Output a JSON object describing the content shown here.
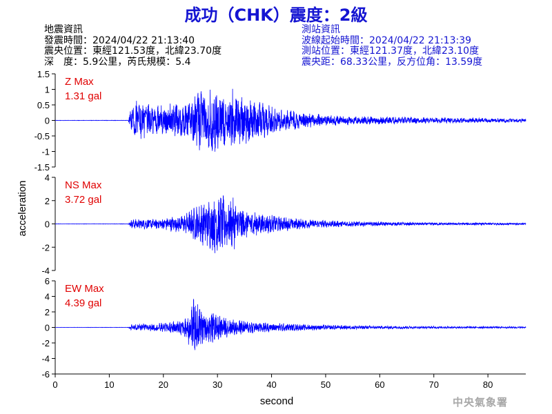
{
  "header": {
    "title": "成功（CHK）震度：2級",
    "quake_info": {
      "heading": "地震資訊",
      "time": "發震時間：2024/04/22 21:13:40",
      "epicenter": "震央位置：東經121.53度，北緯23.70度",
      "depth_magnitude": "深　度：5.9公里，芮氏規模：5.4"
    },
    "station_info": {
      "heading": "測站資訊",
      "wave_start": "波線起始時間：2024/04/22 21:13:39",
      "location": "測站位置：東經121.37度，北緯23.10度",
      "distance_azimuth": "震央距：68.33公里，反方位角：13.59度"
    }
  },
  "footer": {
    "credit": "中央氣象署"
  },
  "colors": {
    "title": "#1414d2",
    "trace": "#0000ff",
    "max_label": "#e00000",
    "axis": "#000000",
    "credit": "#a8a8a8"
  },
  "chart_data": {
    "type": "line",
    "xlabel": "second",
    "ylabel": "acceleration",
    "xlim": [
      0,
      87
    ],
    "xticks": [
      0,
      10,
      20,
      30,
      40,
      50,
      60,
      70,
      80
    ],
    "xtick_labels": [
      "0",
      "10",
      "20",
      "30",
      "40",
      "50",
      "60",
      "70",
      "80"
    ],
    "grid": false,
    "panels": [
      {
        "component": "Z",
        "max_label": "Z Max",
        "max_value_label": "1.31 gal",
        "peak": 1.31,
        "ylim": [
          -1.5,
          1.5
        ],
        "yticks": [
          -1.5,
          -1,
          -0.5,
          0,
          0.5,
          1,
          1.5
        ],
        "ytick_labels": [
          "-1.5",
          "-1",
          "-0.5",
          "0",
          "0.5",
          "1",
          "1.5"
        ],
        "envelope": [
          [
            0,
            0.004
          ],
          [
            13.5,
            0.006
          ],
          [
            14,
            0.35
          ],
          [
            15,
            0.65
          ],
          [
            16,
            0.55
          ],
          [
            18,
            0.5
          ],
          [
            20,
            0.45
          ],
          [
            22,
            0.55
          ],
          [
            24,
            0.5
          ],
          [
            26,
            0.75
          ],
          [
            27,
            1.0
          ],
          [
            28,
            0.8
          ],
          [
            29,
            1.1
          ],
          [
            30,
            0.9
          ],
          [
            31,
            0.85
          ],
          [
            32,
            0.7
          ],
          [
            33,
            1.15
          ],
          [
            34,
            0.9
          ],
          [
            35,
            0.75
          ],
          [
            37,
            0.7
          ],
          [
            38,
            0.55
          ],
          [
            40,
            0.45
          ],
          [
            42,
            0.35
          ],
          [
            44,
            0.3
          ],
          [
            46,
            0.25
          ],
          [
            48,
            0.2
          ],
          [
            50,
            0.18
          ],
          [
            55,
            0.13
          ],
          [
            60,
            0.12
          ],
          [
            65,
            0.1
          ],
          [
            70,
            0.09
          ],
          [
            75,
            0.08
          ],
          [
            80,
            0.07
          ],
          [
            87,
            0.06
          ]
        ]
      },
      {
        "component": "NS",
        "max_label": "NS Max",
        "max_value_label": "3.72 gal",
        "peak": 3.72,
        "ylim": [
          -4,
          4
        ],
        "yticks": [
          -4,
          -2,
          0,
          2,
          4
        ],
        "ytick_labels": [
          "-4",
          "-2",
          "0",
          "2",
          "4"
        ],
        "envelope": [
          [
            0,
            0.01
          ],
          [
            13.5,
            0.015
          ],
          [
            14,
            0.35
          ],
          [
            16,
            0.45
          ],
          [
            18,
            0.4
          ],
          [
            20,
            0.5
          ],
          [
            22,
            0.65
          ],
          [
            24,
            0.8
          ],
          [
            26,
            1.5
          ],
          [
            28,
            1.9
          ],
          [
            29,
            2.2
          ],
          [
            30,
            2.6
          ],
          [
            31,
            2.3
          ],
          [
            32,
            1.8
          ],
          [
            33,
            2.1
          ],
          [
            34,
            1.5
          ],
          [
            36,
            1.2
          ],
          [
            38,
            0.9
          ],
          [
            40,
            0.75
          ],
          [
            42,
            0.6
          ],
          [
            44,
            0.5
          ],
          [
            46,
            0.42
          ],
          [
            48,
            0.35
          ],
          [
            50,
            0.3
          ],
          [
            55,
            0.22
          ],
          [
            60,
            0.17
          ],
          [
            65,
            0.13
          ],
          [
            70,
            0.12
          ],
          [
            80,
            0.1
          ],
          [
            87,
            0.08
          ]
        ]
      },
      {
        "component": "EW",
        "max_label": "EW Max",
        "max_value_label": "4.39 gal",
        "peak": 4.39,
        "ylim": [
          -6,
          6
        ],
        "yticks": [
          -6,
          -4,
          -2,
          0,
          2,
          4,
          6
        ],
        "ytick_labels": [
          "-6",
          "-4",
          "-2",
          "0",
          "2",
          "4",
          "6"
        ],
        "envelope": [
          [
            0,
            0.015
          ],
          [
            13.5,
            0.02
          ],
          [
            14,
            0.35
          ],
          [
            16,
            0.45
          ],
          [
            18,
            0.45
          ],
          [
            20,
            0.6
          ],
          [
            22,
            0.75
          ],
          [
            24,
            1.3
          ],
          [
            25,
            2.5
          ],
          [
            25.5,
            3.5
          ],
          [
            26,
            3.0
          ],
          [
            27,
            2.4
          ],
          [
            28,
            1.7
          ],
          [
            29,
            1.9
          ],
          [
            30,
            1.6
          ],
          [
            31,
            1.3
          ],
          [
            32,
            1.2
          ],
          [
            34,
            0.95
          ],
          [
            36,
            0.8
          ],
          [
            38,
            0.65
          ],
          [
            40,
            0.55
          ],
          [
            42,
            0.5
          ],
          [
            44,
            0.42
          ],
          [
            46,
            0.38
          ],
          [
            48,
            0.35
          ],
          [
            50,
            0.3
          ],
          [
            55,
            0.25
          ],
          [
            60,
            0.2
          ],
          [
            65,
            0.16
          ],
          [
            70,
            0.14
          ],
          [
            80,
            0.12
          ],
          [
            87,
            0.1
          ]
        ]
      }
    ]
  }
}
